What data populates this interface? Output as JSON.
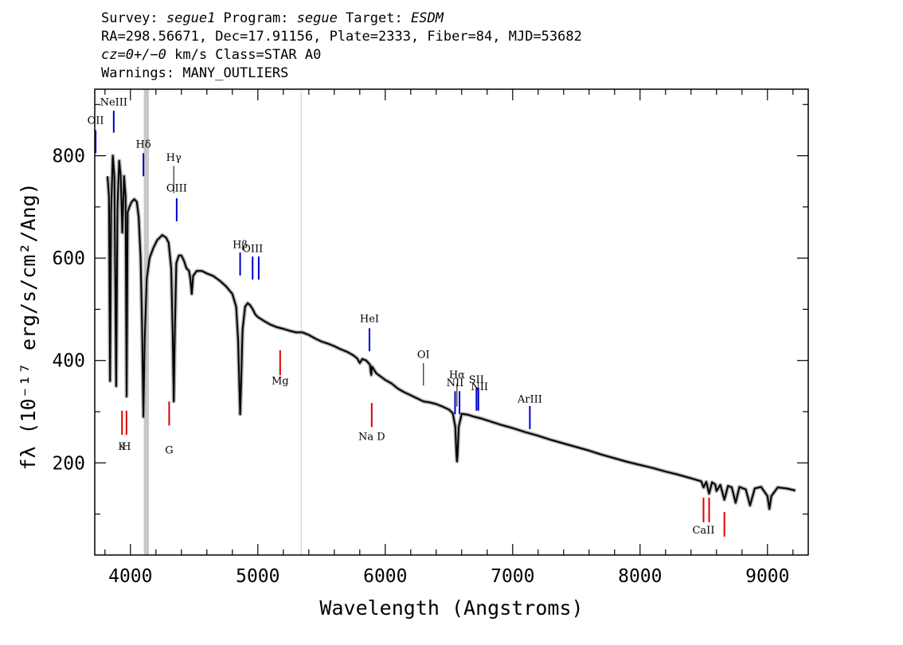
{
  "header": {
    "line1_a": "Survey: ",
    "survey": "segue1",
    "line1_b": " Program: ",
    "program": "segue",
    "line1_c": " Target: ",
    "target": "ESDM",
    "line2": "RA=298.56671, Dec=17.91156, Plate=2333, Fiber=84, MJD=53682",
    "line3_a": "cz=0+/−0",
    "line3_b": " km/s Class=STAR A0",
    "line4": "Warnings: MANY_OUTLIERS"
  },
  "chart_data": {
    "type": "line",
    "xlabel": "Wavelength (Angstroms)",
    "ylabel": "fλ (10⁻¹⁷ erg/s/cm²/Ang)",
    "xlim": [
      3720,
      9320
    ],
    "ylim": [
      20,
      930
    ],
    "x_ticks": [
      4000,
      5000,
      6000,
      7000,
      8000,
      9000
    ],
    "y_ticks": [
      200,
      400,
      600,
      800
    ],
    "grid": false,
    "colors": {
      "spectrum": "#000000",
      "error_band": "#b0b0b0",
      "emission": "#0000cc",
      "absorption": "#dd0000",
      "masked_band": "#c8c8c8",
      "marker_line": "#cccccc"
    },
    "masked_regions": [
      [
        4105,
        4145
      ]
    ],
    "marker_lines": [
      5340
    ],
    "series": [
      {
        "points": [
          [
            3820,
            760
          ],
          [
            3832,
            720
          ],
          [
            3840,
            360
          ],
          [
            3848,
            690
          ],
          [
            3862,
            800
          ],
          [
            3874,
            760
          ],
          [
            3888,
            350
          ],
          [
            3898,
            700
          ],
          [
            3912,
            790
          ],
          [
            3924,
            760
          ],
          [
            3936,
            650
          ],
          [
            3950,
            760
          ],
          [
            3962,
            720
          ],
          [
            3970,
            330
          ],
          [
            3978,
            690
          ],
          [
            3992,
            700
          ],
          [
            4010,
            710
          ],
          [
            4030,
            715
          ],
          [
            4050,
            710
          ],
          [
            4065,
            680
          ],
          [
            4080,
            600
          ],
          [
            4092,
            460
          ],
          [
            4102,
            290
          ],
          [
            4112,
            440
          ],
          [
            4128,
            560
          ],
          [
            4150,
            600
          ],
          [
            4180,
            620
          ],
          [
            4210,
            635
          ],
          [
            4250,
            645
          ],
          [
            4280,
            640
          ],
          [
            4300,
            630
          ],
          [
            4320,
            580
          ],
          [
            4332,
            450
          ],
          [
            4340,
            320
          ],
          [
            4348,
            450
          ],
          [
            4360,
            590
          ],
          [
            4380,
            605
          ],
          [
            4400,
            605
          ],
          [
            4420,
            595
          ],
          [
            4440,
            580
          ],
          [
            4460,
            575
          ],
          [
            4470,
            560
          ],
          [
            4481,
            530
          ],
          [
            4492,
            565
          ],
          [
            4520,
            575
          ],
          [
            4560,
            575
          ],
          [
            4600,
            570
          ],
          [
            4650,
            565
          ],
          [
            4700,
            556
          ],
          [
            4750,
            545
          ],
          [
            4800,
            530
          ],
          [
            4830,
            505
          ],
          [
            4845,
            440
          ],
          [
            4855,
            350
          ],
          [
            4861,
            295
          ],
          [
            4868,
            350
          ],
          [
            4880,
            460
          ],
          [
            4900,
            505
          ],
          [
            4920,
            512
          ],
          [
            4940,
            508
          ],
          [
            4960,
            500
          ],
          [
            4980,
            490
          ],
          [
            5000,
            485
          ],
          [
            5050,
            477
          ],
          [
            5100,
            470
          ],
          [
            5150,
            465
          ],
          [
            5200,
            462
          ],
          [
            5250,
            458
          ],
          [
            5300,
            455
          ],
          [
            5350,
            455
          ],
          [
            5400,
            450
          ],
          [
            5450,
            443
          ],
          [
            5500,
            437
          ],
          [
            5550,
            433
          ],
          [
            5600,
            428
          ],
          [
            5650,
            422
          ],
          [
            5700,
            417
          ],
          [
            5750,
            410
          ],
          [
            5780,
            404
          ],
          [
            5800,
            395
          ],
          [
            5820,
            403
          ],
          [
            5850,
            400
          ],
          [
            5880,
            392
          ],
          [
            5890,
            372
          ],
          [
            5896,
            388
          ],
          [
            5930,
            375
          ],
          [
            6000,
            362
          ],
          [
            6050,
            355
          ],
          [
            6100,
            345
          ],
          [
            6150,
            338
          ],
          [
            6200,
            332
          ],
          [
            6250,
            326
          ],
          [
            6300,
            320
          ],
          [
            6350,
            318
          ],
          [
            6400,
            315
          ],
          [
            6450,
            310
          ],
          [
            6500,
            304
          ],
          [
            6530,
            297
          ],
          [
            6550,
            270
          ],
          [
            6558,
            220
          ],
          [
            6563,
            203
          ],
          [
            6568,
            220
          ],
          [
            6576,
            270
          ],
          [
            6600,
            296
          ],
          [
            6650,
            294
          ],
          [
            6700,
            290
          ],
          [
            6750,
            287
          ],
          [
            6800,
            283
          ],
          [
            6900,
            275
          ],
          [
            7000,
            268
          ],
          [
            7100,
            260
          ],
          [
            7200,
            253
          ],
          [
            7300,
            245
          ],
          [
            7400,
            238
          ],
          [
            7500,
            231
          ],
          [
            7600,
            224
          ],
          [
            7700,
            216
          ],
          [
            7800,
            209
          ],
          [
            7900,
            202
          ],
          [
            8000,
            196
          ],
          [
            8100,
            190
          ],
          [
            8200,
            183
          ],
          [
            8300,
            177
          ],
          [
            8400,
            170
          ],
          [
            8480,
            164
          ],
          [
            8498,
            152
          ],
          [
            8520,
            163
          ],
          [
            8542,
            140
          ],
          [
            8565,
            162
          ],
          [
            8590,
            158
          ],
          [
            8600,
            145
          ],
          [
            8630,
            157
          ],
          [
            8662,
            128
          ],
          [
            8690,
            155
          ],
          [
            8720,
            152
          ],
          [
            8750,
            122
          ],
          [
            8780,
            153
          ],
          [
            8830,
            148
          ],
          [
            8863,
            117
          ],
          [
            8900,
            150
          ],
          [
            8950,
            153
          ],
          [
            9000,
            135
          ],
          [
            9015,
            110
          ],
          [
            9030,
            135
          ],
          [
            9080,
            152
          ],
          [
            9150,
            150
          ],
          [
            9220,
            146
          ]
        ]
      }
    ],
    "line_markers": [
      {
        "label": "OII",
        "wavelength": 3727,
        "kind": "emission",
        "tick_range": [
          805,
          850
        ],
        "label_y": 862
      },
      {
        "label": "NeIII",
        "wavelength": 3869,
        "kind": "emission",
        "tick_range": [
          845,
          888
        ],
        "label_y": 898
      },
      {
        "label": "Hδ",
        "wavelength": 4102,
        "kind": "emission",
        "tick_range": [
          760,
          805
        ],
        "label_y": 816
      },
      {
        "label": "Hγ",
        "wavelength": 4340,
        "kind": "thin",
        "tick_range": [
          727,
          780
        ],
        "label_y": 790
      },
      {
        "label": "OIII",
        "wavelength": 4363,
        "kind": "emission",
        "tick_range": [
          672,
          717
        ],
        "label_y": 730
      },
      {
        "label": "Hβ",
        "wavelength": 4861,
        "kind": "emission",
        "tick_range": [
          566,
          611
        ],
        "label_y": 620
      },
      {
        "label": "OIII",
        "wavelength": 4959,
        "kind": "emission",
        "tick_range": [
          558,
          603
        ],
        "label_y": 612
      },
      {
        "label": "OIII",
        "wavelength": 5007,
        "kind": "emission",
        "tick_range": [
          558,
          603
        ],
        "label_y": null
      },
      {
        "label": "HeI",
        "wavelength": 5876,
        "kind": "emission",
        "tick_range": [
          418,
          463
        ],
        "label_y": 475
      },
      {
        "label": "OI",
        "wavelength": 6300,
        "kind": "thin",
        "tick_range": [
          351,
          395
        ],
        "label_y": 405
      },
      {
        "label": "NII",
        "wavelength": 6548,
        "kind": "emission",
        "tick_range": [
          295,
          340
        ],
        "label_y": 350
      },
      {
        "label": "Hα",
        "wavelength": 6563,
        "kind": "thin",
        "tick_range": [
          310,
          355
        ],
        "label_y": 365
      },
      {
        "label": "NII",
        "wavelength": 6583,
        "kind": "emission",
        "tick_range": [
          295,
          340
        ],
        "label_y": null
      },
      {
        "label": "SII",
        "wavelength": 6716,
        "kind": "emission",
        "tick_range": [
          302,
          347
        ],
        "label_y": 356
      },
      {
        "label": "SII",
        "wavelength": 6731,
        "kind": "emission",
        "tick_range": [
          302,
          347
        ],
        "label_y": null
      },
      {
        "label": "NII",
        "wavelength": 6740,
        "kind": "none",
        "tick_range": null,
        "label_y": 342
      },
      {
        "label": "ArIII",
        "wavelength": 7135,
        "kind": "emission",
        "tick_range": [
          266,
          311
        ],
        "label_y": 318
      },
      {
        "label": "K",
        "wavelength": 3934,
        "kind": "absorption",
        "tick_range": [
          255,
          302
        ],
        "label_y": 225
      },
      {
        "label": "H",
        "wavelength": 3969,
        "kind": "absorption",
        "tick_range": [
          255,
          302
        ],
        "label_y": 225
      },
      {
        "label": "G",
        "wavelength": 4304,
        "kind": "absorption",
        "tick_range": [
          273,
          320
        ],
        "label_y": 218
      },
      {
        "label": "Mg",
        "wavelength": 5175,
        "kind": "absorption",
        "tick_range": [
          371,
          420
        ],
        "label_y": 354
      },
      {
        "label": "Na D",
        "wavelength": 5894,
        "kind": "absorption",
        "tick_range": [
          270,
          317
        ],
        "label_y": 245
      },
      {
        "label": "CaII",
        "wavelength": 8498,
        "kind": "absorption",
        "tick_range": [
          84,
          132
        ],
        "label_y": 62
      },
      {
        "label": "CaII",
        "wavelength": 8542,
        "kind": "absorption",
        "tick_range": [
          84,
          132
        ],
        "label_y": null
      },
      {
        "label": "CaII",
        "wavelength": 8662,
        "kind": "absorption",
        "tick_range": [
          56,
          104
        ],
        "label_y": null
      }
    ]
  }
}
